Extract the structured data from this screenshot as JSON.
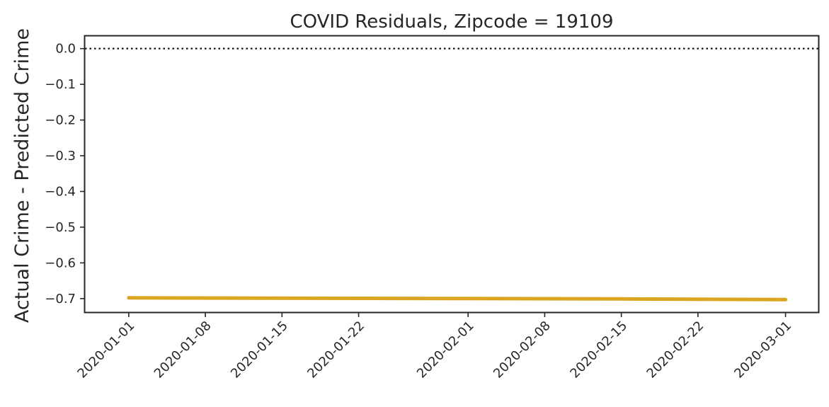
{
  "chart_data": {
    "type": "line",
    "title": "COVID Residuals, Zipcode = 19109",
    "xlabel": "",
    "ylabel": "Actual Crime - Predicted Crime",
    "x_tick_labels": [
      "2020-01-01",
      "2020-01-08",
      "2020-01-15",
      "2020-01-22",
      "2020-02-01",
      "2020-02-08",
      "2020-02-15",
      "2020-02-22",
      "2020-03-01"
    ],
    "y_tick_labels": [
      "0.0",
      "−0.1",
      "−0.2",
      "−0.3",
      "−0.4",
      "−0.5",
      "−0.6",
      "−0.7"
    ],
    "y_ticks": [
      0.0,
      -0.1,
      -0.2,
      -0.3,
      -0.4,
      -0.5,
      -0.6,
      -0.7
    ],
    "xlim": [
      "2019-12-28",
      "2020-03-04"
    ],
    "ylim": [
      -0.738,
      0.035
    ],
    "reference_line": {
      "y": 0.0,
      "style": "dotted",
      "color": "#111111"
    },
    "series": [
      {
        "color": "#DAA520",
        "x": [
          "2020-01-01",
          "2020-01-15",
          "2020-02-01",
          "2020-02-15",
          "2020-03-01"
        ],
        "values": [
          -0.698,
          -0.699,
          -0.7,
          -0.701,
          -0.703
        ]
      }
    ],
    "grid": false,
    "legend": "none"
  }
}
